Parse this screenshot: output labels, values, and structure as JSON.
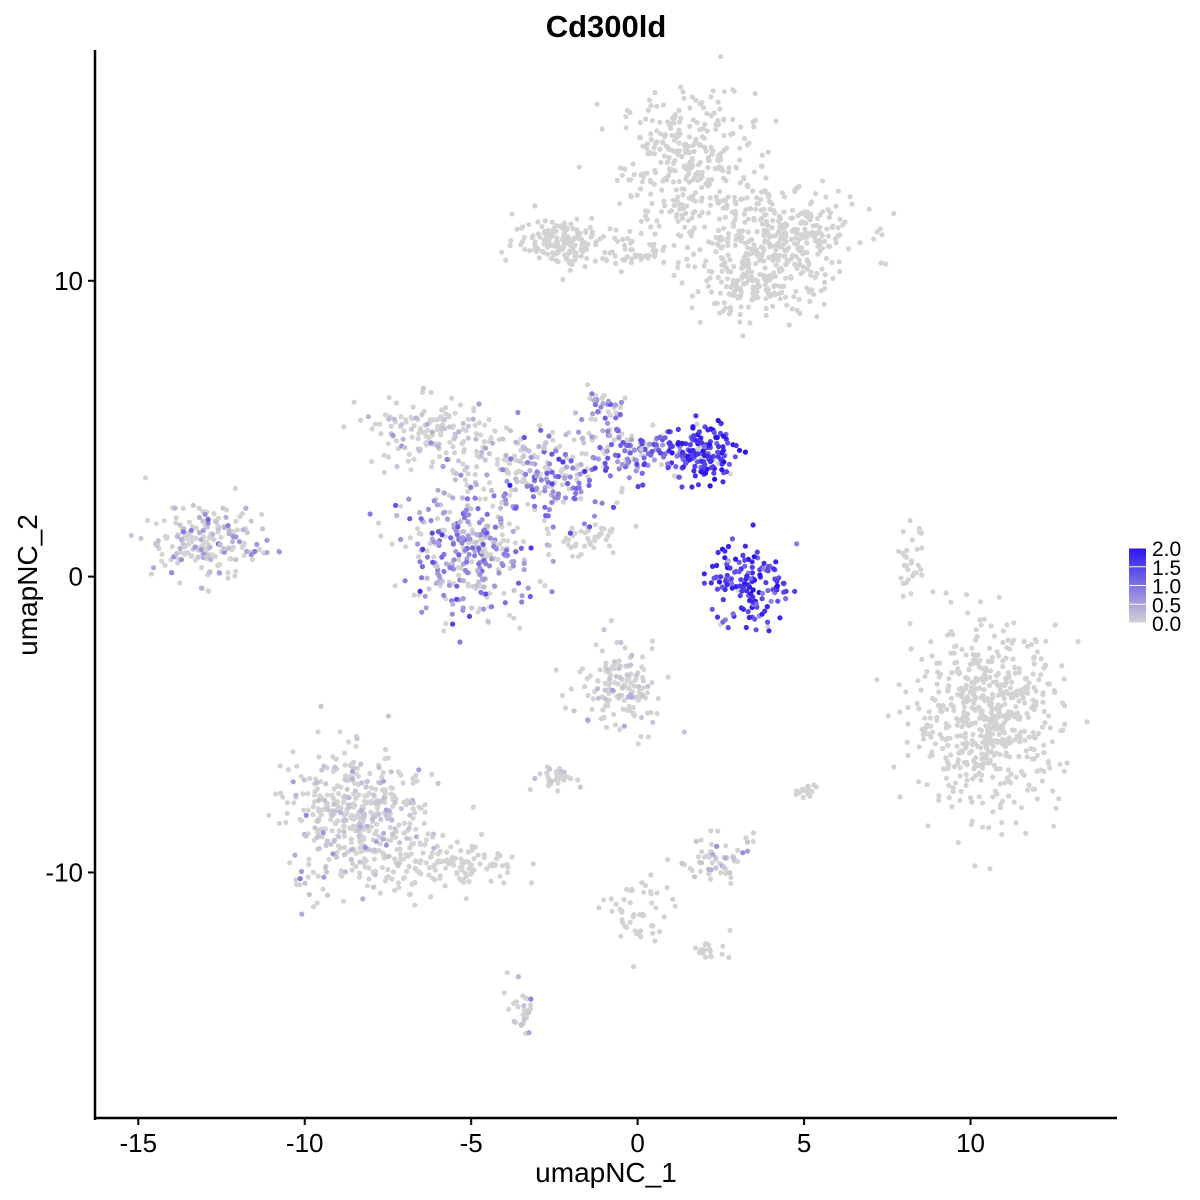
{
  "chart_data": {
    "type": "scatter",
    "title": "Cd300ld",
    "xlabel": "umapNC_1",
    "ylabel": "umapNC_2",
    "xlim": [
      -16.3,
      14.4
    ],
    "ylim": [
      -18.3,
      17.8
    ],
    "x_ticks": [
      -15,
      -10,
      -5,
      0,
      5,
      10
    ],
    "x_tick_labels": [
      "-15",
      "-10",
      "-5",
      "0",
      "5",
      "10"
    ],
    "y_ticks": [
      10,
      0,
      -10
    ],
    "y_tick_labels": [
      "10",
      "0",
      "-10"
    ],
    "grid": false,
    "legend": {
      "placement": "right",
      "title": "",
      "labels": [
        "2.0",
        "1.5",
        "1.0",
        "0.5",
        "0.0"
      ],
      "values": [
        2.0,
        1.5,
        1.0,
        0.5,
        0.0
      ],
      "color_low": "#d3d3d3",
      "color_high": "#2a14f0"
    },
    "colors": {
      "low": "#d3d3d3",
      "high": "#2a14f0"
    },
    "clusters": [
      {
        "cx": 1.5,
        "cy": 14.0,
        "sx": 1.0,
        "sy": 1.2,
        "n": 320,
        "expr": 0.0
      },
      {
        "cx": 4.2,
        "cy": 11.5,
        "sx": 1.2,
        "sy": 0.8,
        "n": 320,
        "expr": 0.0
      },
      {
        "cx": 3.5,
        "cy": 9.8,
        "sx": 1.0,
        "sy": 0.5,
        "n": 160,
        "expr": 0.0
      },
      {
        "cx": -2.3,
        "cy": 11.4,
        "sx": 0.7,
        "sy": 0.4,
        "n": 140,
        "expr": 0.0
      },
      {
        "cx": 0.0,
        "cy": 11.0,
        "sx": 1.2,
        "sy": 0.3,
        "n": 70,
        "expr": 0.0
      },
      {
        "cx": -13.0,
        "cy": 1.2,
        "sx": 0.9,
        "sy": 0.6,
        "n": 200,
        "expr": 0.28
      },
      {
        "cx": -6.5,
        "cy": 5.0,
        "sx": 0.9,
        "sy": 0.6,
        "n": 130,
        "expr": 0.05
      },
      {
        "cx": -4.0,
        "cy": 4.0,
        "sx": 1.0,
        "sy": 0.6,
        "n": 110,
        "expr": 0.25
      },
      {
        "cx": -5.0,
        "cy": 0.8,
        "sx": 1.0,
        "sy": 1.1,
        "n": 330,
        "expr": 0.75
      },
      {
        "cx": -2.5,
        "cy": 3.3,
        "sx": 0.9,
        "sy": 0.7,
        "n": 140,
        "expr": 0.9
      },
      {
        "cx": -1.0,
        "cy": 5.3,
        "sx": 0.4,
        "sy": 0.6,
        "n": 60,
        "expr": 0.7
      },
      {
        "cx": 0.3,
        "cy": 4.2,
        "sx": 0.9,
        "sy": 0.4,
        "n": 120,
        "expr": 1.0
      },
      {
        "cx": 2.0,
        "cy": 4.2,
        "sx": 0.5,
        "sy": 0.5,
        "n": 140,
        "expr": 1.75
      },
      {
        "cx": 3.3,
        "cy": -0.3,
        "sx": 0.6,
        "sy": 0.7,
        "n": 150,
        "expr": 1.5
      },
      {
        "cx": -1.5,
        "cy": 1.3,
        "sx": 0.6,
        "sy": 0.3,
        "n": 40,
        "expr": 0.0
      },
      {
        "cx": 10.5,
        "cy": -4.8,
        "sx": 1.1,
        "sy": 1.5,
        "n": 600,
        "expr": 0.0
      },
      {
        "cx": 8.2,
        "cy": 0.4,
        "sx": 0.2,
        "sy": 0.6,
        "n": 30,
        "expr": 0.0
      },
      {
        "cx": -8.5,
        "cy": -8.2,
        "sx": 1.0,
        "sy": 1.2,
        "n": 450,
        "expr": 0.02
      },
      {
        "cx": -5.5,
        "cy": -9.8,
        "sx": 1.0,
        "sy": 0.4,
        "n": 130,
        "expr": 0.0
      },
      {
        "cx": -0.5,
        "cy": -3.8,
        "sx": 0.7,
        "sy": 0.7,
        "n": 150,
        "expr": 0.03
      },
      {
        "cx": 2.3,
        "cy": -9.5,
        "sx": 0.5,
        "sy": 0.4,
        "n": 60,
        "expr": 0.03
      },
      {
        "cx": -2.5,
        "cy": -6.8,
        "sx": 0.3,
        "sy": 0.2,
        "n": 30,
        "expr": 0.05
      },
      {
        "cx": 0.0,
        "cy": -11.5,
        "sx": 0.5,
        "sy": 0.7,
        "n": 50,
        "expr": 0.0
      },
      {
        "cx": -3.5,
        "cy": -14.8,
        "sx": 0.2,
        "sy": 0.5,
        "n": 30,
        "expr": 0.05
      },
      {
        "cx": 5.0,
        "cy": -7.3,
        "sx": 0.2,
        "sy": 0.15,
        "n": 15,
        "expr": 0.0
      },
      {
        "cx": 2.2,
        "cy": -12.6,
        "sx": 0.3,
        "sy": 0.15,
        "n": 20,
        "expr": 0.0
      }
    ]
  }
}
